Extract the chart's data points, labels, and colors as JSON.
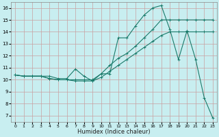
{
  "xlabel": "Humidex (Indice chaleur)",
  "bg_color": "#c8eef0",
  "grid_color": "#c8a0a0",
  "line_color": "#1a7a6a",
  "xlim": [
    -0.5,
    23.5
  ],
  "ylim": [
    6.5,
    16.5
  ],
  "xticks": [
    0,
    1,
    2,
    3,
    4,
    5,
    6,
    7,
    8,
    9,
    10,
    11,
    12,
    13,
    14,
    15,
    16,
    17,
    18,
    19,
    20,
    21,
    22,
    23
  ],
  "yticks": [
    7,
    8,
    9,
    10,
    11,
    12,
    13,
    14,
    15,
    16
  ],
  "series": [
    {
      "x": [
        0,
        1,
        2,
        3,
        4,
        5,
        6,
        7,
        8,
        9,
        10,
        11,
        12,
        13,
        14,
        15,
        16,
        17,
        18,
        19,
        20,
        21,
        22,
        23
      ],
      "y": [
        10.4,
        10.3,
        10.3,
        10.3,
        10.1,
        10.0,
        10.0,
        9.9,
        9.9,
        9.9,
        10.2,
        10.7,
        11.2,
        11.7,
        12.2,
        12.7,
        13.2,
        13.7,
        14.0,
        14.0,
        14.0,
        14.0,
        14.0,
        14.0
      ]
    },
    {
      "x": [
        0,
        1,
        2,
        3,
        4,
        5,
        6,
        7,
        8,
        9,
        10,
        11,
        12,
        13,
        14,
        15,
        16,
        17,
        18,
        19,
        20,
        21,
        22,
        23
      ],
      "y": [
        10.4,
        10.3,
        10.3,
        10.3,
        10.1,
        10.0,
        10.0,
        10.0,
        10.0,
        10.0,
        10.5,
        11.2,
        11.8,
        12.2,
        12.8,
        13.5,
        14.2,
        15.0,
        15.0,
        15.0,
        15.0,
        15.0,
        15.0,
        15.0
      ]
    },
    {
      "x": [
        0,
        1,
        2,
        3,
        4,
        5,
        6,
        7,
        8,
        9,
        10,
        11,
        12,
        13,
        14,
        15,
        16,
        17,
        18,
        19,
        20,
        21,
        22,
        23
      ],
      "y": [
        10.4,
        10.3,
        10.3,
        10.3,
        10.3,
        10.1,
        10.1,
        10.9,
        10.3,
        9.9,
        10.5,
        10.5,
        13.5,
        13.5,
        14.5,
        15.4,
        16.0,
        16.2,
        14.2,
        11.7,
        14.1,
        11.7,
        8.5,
        6.8
      ]
    }
  ]
}
